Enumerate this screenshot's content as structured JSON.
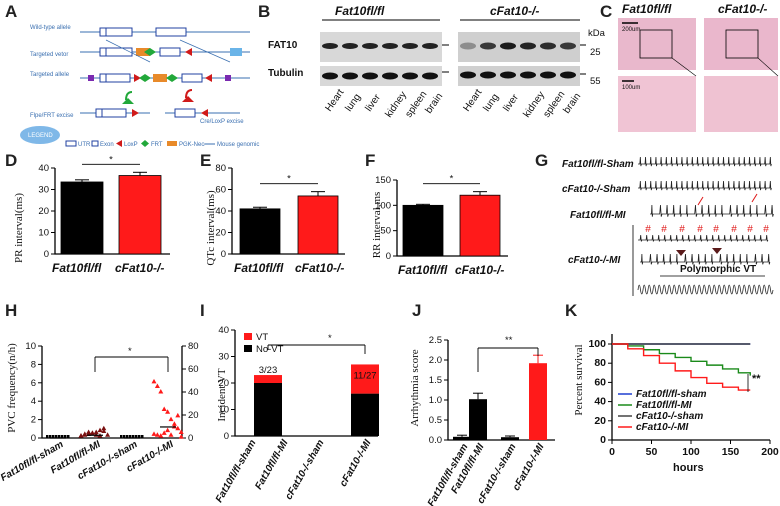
{
  "panel_labels": [
    "A",
    "B",
    "C",
    "D",
    "E",
    "F",
    "G",
    "H",
    "I",
    "J",
    "K"
  ],
  "panel_a": {
    "rows": [
      "Wild-type allele",
      "Targeted vetor",
      "Targeted allele",
      "Flpe/FRT excise",
      "Cre/LoxP excise"
    ],
    "legend": [
      "UTR",
      "Exon",
      "LoxP",
      "FRT",
      "PGK-Neo",
      "Mouse genomic"
    ],
    "logo": "LEGEND"
  },
  "panel_b": {
    "group1": "Fat10fl/fl",
    "group2": "cFat10-/-",
    "rows": [
      "FAT10",
      "Tubulin"
    ],
    "kda_label": "kDa",
    "kda": [
      "25",
      "55"
    ],
    "tissues": [
      "Heart",
      "lung",
      "liver",
      "kidney",
      "spleen",
      "brain"
    ]
  },
  "panel_c": {
    "group1": "Fat10fl/fl",
    "group2": "cFat10-/-",
    "scale_top": "200um",
    "scale_bottom": "100um"
  },
  "panel_g": {
    "traces": [
      "Fat10fl/fl-Sham",
      "cFat10-/-Sham",
      "Fat10fl/fl-MI",
      "cFat10-/-MI"
    ],
    "annotation": "Polymorphic VT",
    "marker": "#"
  },
  "chart_data": [
    {
      "panel": "D",
      "type": "bar",
      "categories": [
        "Fat10fl/fl",
        "cFat10-/-"
      ],
      "values": [
        33.5,
        36.5
      ],
      "errors": [
        1.0,
        1.5
      ],
      "colors": [
        "#000000",
        "#ff1a1a"
      ],
      "ylabel": "PR interval(ms)",
      "ylim": [
        0,
        40
      ],
      "yticks": [
        0,
        10,
        20,
        30,
        40
      ],
      "significance": "*"
    },
    {
      "panel": "E",
      "type": "bar",
      "categories": [
        "Fat10fl/fl",
        "cFat10-/-"
      ],
      "values": [
        42,
        54
      ],
      "errors": [
        1.5,
        4
      ],
      "colors": [
        "#000000",
        "#ff1a1a"
      ],
      "ylabel": "QTc interval(ms)",
      "ylim": [
        0,
        80
      ],
      "yticks": [
        0,
        20,
        40,
        60,
        80
      ],
      "significance": "*"
    },
    {
      "panel": "F",
      "type": "bar",
      "categories": [
        "Fat10fl/fl",
        "cFat10-/-"
      ],
      "values": [
        100,
        120
      ],
      "errors": [
        2,
        7
      ],
      "colors": [
        "#000000",
        "#ff1a1a"
      ],
      "ylabel": "RR interval,ms",
      "ylim": [
        0,
        150
      ],
      "yticks": [
        0,
        50,
        100,
        150
      ],
      "significance": "*"
    },
    {
      "panel": "H",
      "type": "scatter",
      "categories": [
        "Fat10fl/fl-sham",
        "Fat10fl/fl-MI",
        "cFat10-/-sham",
        "cFat10-/-MI"
      ],
      "means": [
        0,
        0.3,
        0,
        1.2
      ],
      "ylabel": "PVC frequency(n/h)",
      "ylim": [
        0,
        10
      ],
      "yticks": [
        0,
        2,
        4,
        6,
        8,
        10
      ],
      "y2lim": [
        0,
        80
      ],
      "y2ticks": [
        0,
        20,
        40,
        60,
        80
      ],
      "significance": "*"
    },
    {
      "panel": "I",
      "type": "bar",
      "categories": [
        "Fat10fl/fl-sham",
        "Fat10fl/fl-MI",
        "cFat10-/-sham",
        "cFat10-/-MI"
      ],
      "series": [
        {
          "name": "No-VT",
          "values": [
            0,
            20,
            0,
            16
          ],
          "color": "#000000"
        },
        {
          "name": "VT",
          "values": [
            0,
            3,
            0,
            11
          ],
          "color": "#ff1a1a"
        }
      ],
      "bar_labels": [
        "",
        "3/23",
        "",
        "11/27"
      ],
      "ylabel": "Incident VT",
      "ylim": [
        0,
        40
      ],
      "yticks": [
        0,
        10,
        20,
        30,
        40
      ],
      "significance": "*"
    },
    {
      "panel": "J",
      "type": "bar",
      "categories": [
        "Fat10fl/fl-sham",
        "Fat10fl/fl-MI",
        "cFat10-/-sham",
        "cFat10-/-MI"
      ],
      "values": [
        0.08,
        1.02,
        0.07,
        1.92
      ],
      "errors": [
        0.04,
        0.15,
        0.03,
        0.2
      ],
      "colors": [
        "#000000",
        "#000000",
        "#000000",
        "#ff1a1a"
      ],
      "ylabel": "Arrhythmia score",
      "ylim": [
        0,
        2.5
      ],
      "yticks": [
        0.0,
        0.5,
        1.0,
        1.5,
        2.0,
        2.5
      ],
      "significance": "**"
    },
    {
      "panel": "K",
      "type": "line",
      "xlabel": "hours",
      "ylabel": "Percent survival",
      "xlim": [
        0,
        200
      ],
      "xticks": [
        0,
        50,
        100,
        150,
        200
      ],
      "ylim": [
        0,
        100
      ],
      "yticks": [
        0,
        20,
        40,
        60,
        80,
        100
      ],
      "series": [
        {
          "name": "Fat10fl/fl-sham",
          "color": "#1f3fd0",
          "x": [
            0,
            175
          ],
          "y": [
            100,
            100
          ]
        },
        {
          "name": "Fat10fl/fl-MI",
          "color": "#1a8a1a",
          "x": [
            0,
            20,
            40,
            60,
            80,
            100,
            120,
            140,
            160,
            175
          ],
          "y": [
            100,
            98,
            94,
            90,
            86,
            82,
            78,
            74,
            70,
            67
          ]
        },
        {
          "name": "cFat10-/-sham",
          "color": "#444444",
          "x": [
            0,
            175
          ],
          "y": [
            100,
            100
          ]
        },
        {
          "name": "cFat10-/-MI",
          "color": "#ff1a1a",
          "x": [
            0,
            20,
            40,
            60,
            80,
            100,
            120,
            140,
            160,
            175
          ],
          "y": [
            100,
            95,
            88,
            80,
            72,
            65,
            59,
            55,
            52,
            52
          ]
        }
      ],
      "significance": "**"
    }
  ]
}
